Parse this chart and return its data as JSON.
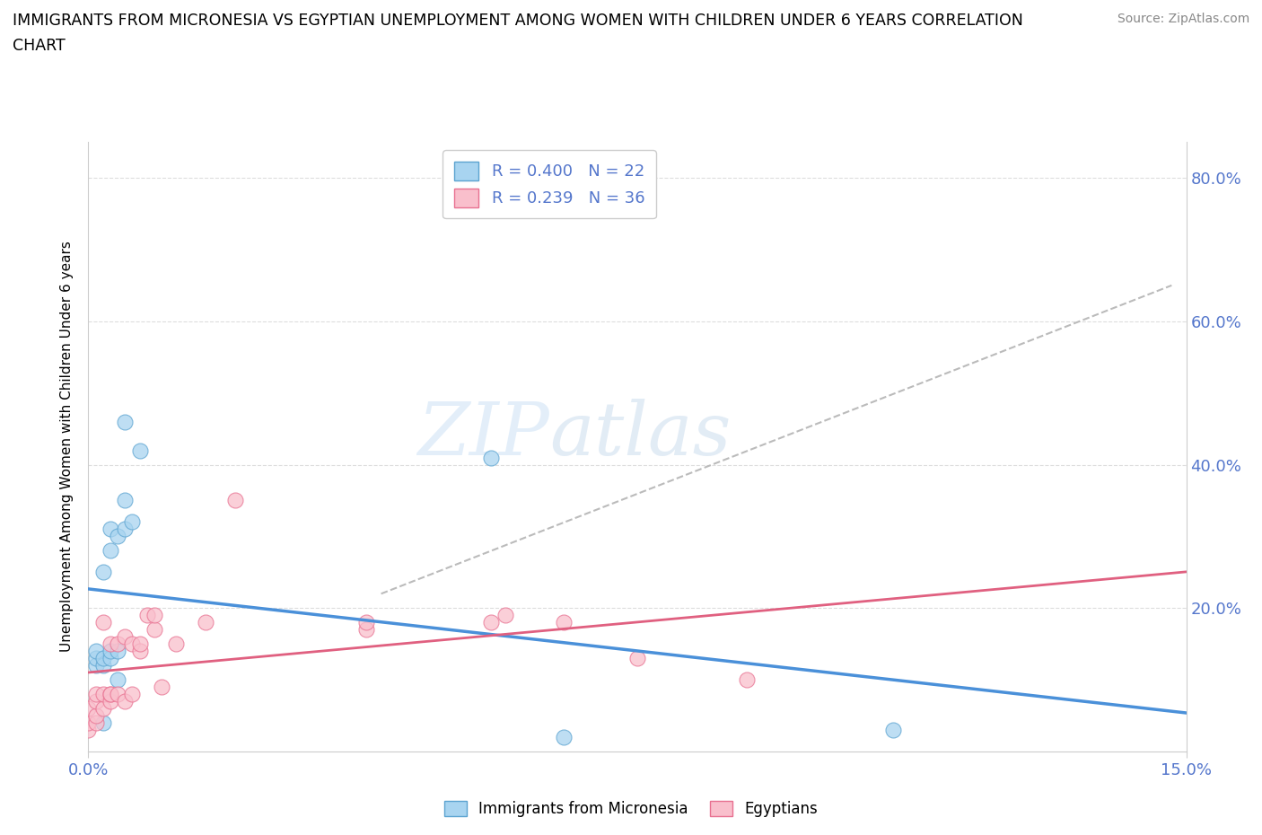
{
  "title_line1": "IMMIGRANTS FROM MICRONESIA VS EGYPTIAN UNEMPLOYMENT AMONG WOMEN WITH CHILDREN UNDER 6 YEARS CORRELATION",
  "title_line2": "CHART",
  "source": "Source: ZipAtlas.com",
  "ylabel": "Unemployment Among Women with Children Under 6 years",
  "xlim": [
    0.0,
    0.15
  ],
  "ylim": [
    0.0,
    0.85
  ],
  "ytick_vals": [
    0.2,
    0.4,
    0.6,
    0.8
  ],
  "ytick_labels": [
    "20.0%",
    "40.0%",
    "60.0%",
    "80.0%"
  ],
  "xtick_vals": [
    0.0,
    0.15
  ],
  "xtick_labels": [
    "0.0%",
    "15.0%"
  ],
  "watermark_top": "ZIP",
  "watermark_bot": "atlas",
  "legend_items": [
    {
      "label": "R = 0.400   N = 22",
      "color": "#A8D4F0"
    },
    {
      "label": "R = 0.239   N = 36",
      "color": "#F9BFCC"
    }
  ],
  "mic_x": [
    0.001,
    0.001,
    0.001,
    0.002,
    0.002,
    0.002,
    0.002,
    0.003,
    0.003,
    0.003,
    0.003,
    0.004,
    0.004,
    0.004,
    0.005,
    0.005,
    0.005,
    0.006,
    0.007,
    0.055,
    0.065,
    0.11
  ],
  "mic_y": [
    0.12,
    0.13,
    0.14,
    0.04,
    0.12,
    0.13,
    0.25,
    0.13,
    0.14,
    0.28,
    0.31,
    0.1,
    0.14,
    0.3,
    0.31,
    0.35,
    0.46,
    0.32,
    0.42,
    0.41,
    0.02,
    0.03
  ],
  "egy_x": [
    0.0,
    0.0,
    0.0,
    0.001,
    0.001,
    0.001,
    0.001,
    0.002,
    0.002,
    0.002,
    0.003,
    0.003,
    0.003,
    0.003,
    0.004,
    0.004,
    0.005,
    0.005,
    0.006,
    0.006,
    0.007,
    0.007,
    0.008,
    0.009,
    0.009,
    0.01,
    0.012,
    0.016,
    0.02,
    0.038,
    0.038,
    0.055,
    0.057,
    0.065,
    0.075,
    0.09
  ],
  "egy_y": [
    0.03,
    0.04,
    0.06,
    0.04,
    0.05,
    0.07,
    0.08,
    0.06,
    0.08,
    0.18,
    0.07,
    0.08,
    0.08,
    0.15,
    0.08,
    0.15,
    0.07,
    0.16,
    0.08,
    0.15,
    0.14,
    0.15,
    0.19,
    0.17,
    0.19,
    0.09,
    0.15,
    0.18,
    0.35,
    0.17,
    0.18,
    0.18,
    0.19,
    0.18,
    0.13,
    0.1
  ],
  "mic_color": "#A8D4F0",
  "mic_edge": "#5BA3D0",
  "egy_color": "#F9BFCC",
  "egy_edge": "#E87090",
  "mic_line_color": "#4A90D9",
  "egy_line_color": "#E06080",
  "dash_color": "#BBBBBB",
  "bg_color": "#FFFFFF",
  "grid_color": "#DDDDDD",
  "tick_color": "#5577CC",
  "spine_color": "#CCCCCC"
}
